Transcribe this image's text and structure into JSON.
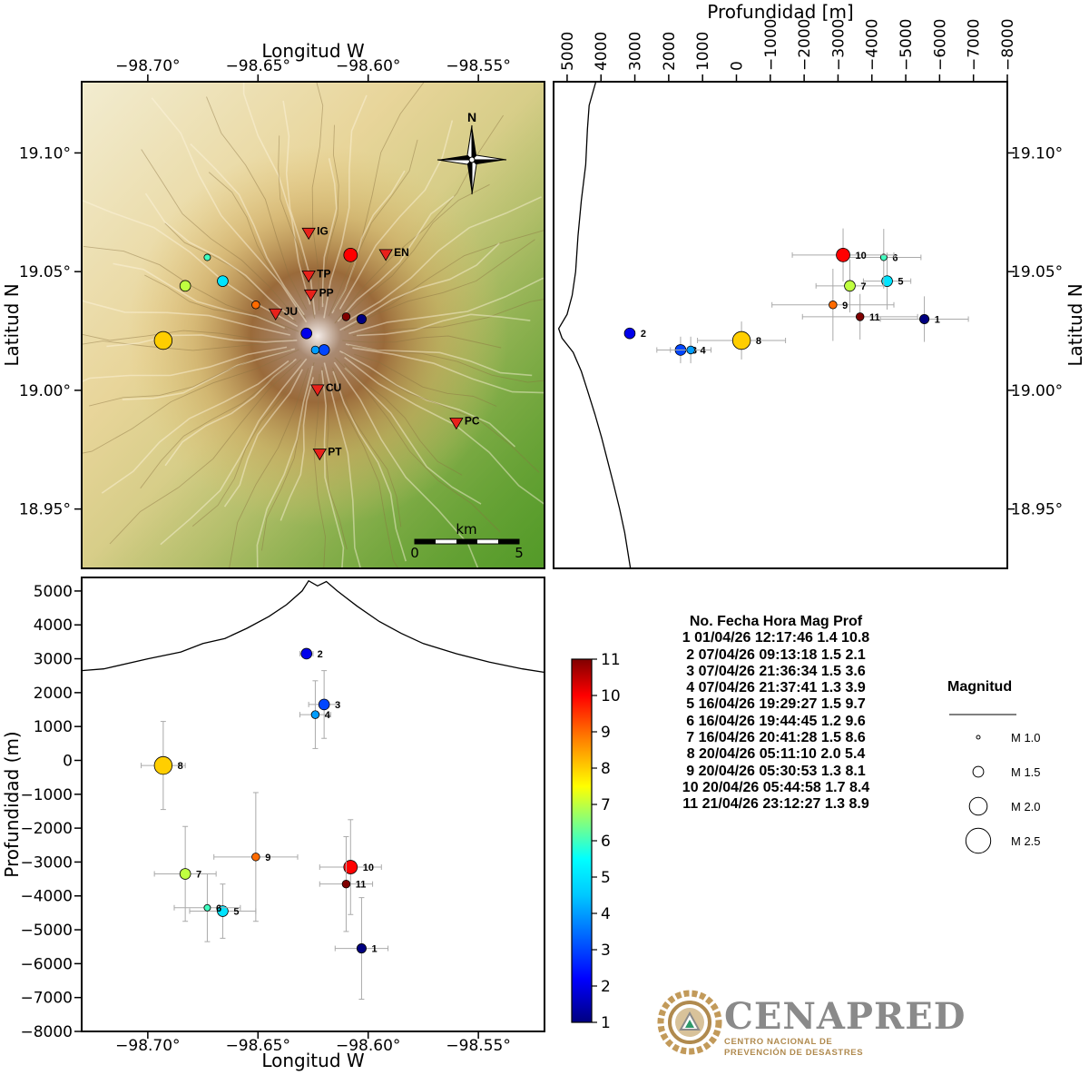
{
  "labels": {
    "map_top_xlabel": "Longitud W",
    "map_left_ylabel": "Latitud N",
    "depth_top_xlabel": "Profundidad [m]",
    "depth_right_ylabel": "Latitud N",
    "cross_left_ylabel": "Profundidad (m)",
    "cross_bottom_xlabel": "Longitud W",
    "north_label": "N",
    "scale_unit": "km",
    "scale_start": "0",
    "scale_end": "5"
  },
  "ticks": {
    "lon": [
      "−98.70°",
      "−98.65°",
      "−98.60°",
      "−98.55°"
    ],
    "lat": [
      "19.10°",
      "19.05°",
      "19.00°",
      "18.95°"
    ],
    "depth_top": [
      "5000",
      "4000",
      "3000",
      "2000",
      "1000",
      "0",
      "−1000",
      "−2000",
      "−3000",
      "−4000",
      "−5000",
      "−6000",
      "−7000",
      "−8000"
    ],
    "cross_y": [
      "5000",
      "4000",
      "3000",
      "2000",
      "1000",
      "0",
      "−1000",
      "−2000",
      "−3000",
      "−4000",
      "−5000",
      "−6000",
      "−7000",
      "−8000"
    ],
    "colorbar": [
      "1",
      "2",
      "3",
      "4",
      "5",
      "6",
      "7",
      "8",
      "9",
      "10",
      "11"
    ]
  },
  "stations": [
    {
      "code": "IG",
      "lon": -98.627,
      "lat": 19.066
    },
    {
      "code": "EN",
      "lon": -98.592,
      "lat": 19.057
    },
    {
      "code": "TP",
      "lon": -98.627,
      "lat": 19.048
    },
    {
      "code": "PP",
      "lon": -98.626,
      "lat": 19.04
    },
    {
      "code": "JU",
      "lon": -98.642,
      "lat": 19.032
    },
    {
      "code": "CU",
      "lon": -98.623,
      "lat": 19.0
    },
    {
      "code": "PC",
      "lon": -98.56,
      "lat": 18.986
    },
    {
      "code": "PT",
      "lon": -98.622,
      "lat": 18.973
    }
  ],
  "table": {
    "header": "No. Fecha Hora Mag Prof",
    "rows": [
      "1 01/04/26 12:17:46 1.4 10.8",
      "2 07/04/26 09:13:18 1.5 2.1",
      "3 07/04/26 21:36:34 1.5 3.6",
      "4 07/04/26 21:37:41 1.3 3.9",
      "5 16/04/26 19:29:27 1.5 9.7",
      "6 16/04/26 19:44:45 1.2 9.6",
      "7 16/04/26 20:41:28 1.5 8.6",
      "8 20/04/26 05:11:10 2.0 5.4",
      "9 20/04/26 05:30:53 1.3 8.1",
      "10 20/04/26 05:44:58 1.7 8.4",
      "11 21/04/26 23:12:27 1.3 8.9"
    ]
  },
  "legend": {
    "title": "Magnitud",
    "items": [
      {
        "label": "M 1.0",
        "mag": 1.0
      },
      {
        "label": "M 1.5",
        "mag": 1.5
      },
      {
        "label": "M 2.0",
        "mag": 2.0
      },
      {
        "label": "M 2.5",
        "mag": 2.5
      }
    ]
  },
  "logo": {
    "name": "CENAPRED",
    "sub1": "CENTRO NACIONAL DE",
    "sub2": "PREVENCIÓN DE DESASTRES"
  },
  "colors": {
    "station": "#e8221b",
    "error_bar": "#aaaaaa",
    "colormap": [
      "#000080",
      "#0000ff",
      "#0080ff",
      "#00ffff",
      "#80ff80",
      "#ffff00",
      "#ff8000",
      "#ff0000",
      "#800000"
    ],
    "logo_gray": "#8a8a8a",
    "logo_gold": "#b08a4e"
  },
  "chart_data": {
    "type": "scatter",
    "color_scale": {
      "variable": "event number",
      "range": [
        1,
        11
      ]
    },
    "map_extent": {
      "lon": [
        -98.73,
        -98.52
      ],
      "lat": [
        18.925,
        19.13
      ]
    },
    "depth_range": [
      -8000,
      5000
    ],
    "events": [
      {
        "id": 1,
        "lon": -98.603,
        "lat": 19.03,
        "depth": -5550,
        "mag": 1.4,
        "elon": 0.012,
        "edepth": 1300,
        "ecross_depth": 1500
      },
      {
        "id": 2,
        "lon": -98.628,
        "lat": 19.024,
        "depth": 3150,
        "mag": 1.5,
        "elon": 0.003,
        "edepth": 150,
        "ecross_depth": 130
      },
      {
        "id": 3,
        "lon": -98.62,
        "lat": 19.017,
        "depth": 1650,
        "mag": 1.5,
        "elon": 0.007,
        "edepth": 700,
        "ecross_depth": 1000
      },
      {
        "id": 4,
        "lon": -98.624,
        "lat": 19.017,
        "depth": 1350,
        "mag": 1.3,
        "elon": 0.007,
        "edepth": 600,
        "ecross_depth": 1000
      },
      {
        "id": 5,
        "lon": -98.666,
        "lat": 19.046,
        "depth": -4450,
        "mag": 1.5,
        "elon": 0.015,
        "edepth": 700,
        "ecross_depth": 800
      },
      {
        "id": 6,
        "lon": -98.673,
        "lat": 19.056,
        "depth": -4350,
        "mag": 1.2,
        "elon": 0.015,
        "edepth": 1100,
        "ecross_depth": 1000
      },
      {
        "id": 7,
        "lon": -98.683,
        "lat": 19.044,
        "depth": -3350,
        "mag": 1.5,
        "elon": 0.014,
        "edepth": 1000,
        "ecross_depth": 1400
      },
      {
        "id": 8,
        "lon": -98.693,
        "lat": 19.021,
        "depth": -150,
        "mag": 2.0,
        "elon": 0.01,
        "edepth": 1300,
        "ecross_depth": 1300
      },
      {
        "id": 9,
        "lon": -98.651,
        "lat": 19.036,
        "depth": -2850,
        "mag": 1.3,
        "elon": 0.019,
        "edepth": 1800,
        "ecross_depth": 1900
      },
      {
        "id": 10,
        "lon": -98.608,
        "lat": 19.057,
        "depth": -3150,
        "mag": 1.7,
        "elon": 0.014,
        "edepth": 1500,
        "ecross_depth": 1400
      },
      {
        "id": 11,
        "lon": -98.61,
        "lat": 19.031,
        "depth": -3650,
        "mag": 1.3,
        "elon": 0.012,
        "edepth": 1700,
        "ecross_depth": 1400
      }
    ],
    "surface_profile_ew": [
      [
        -98.73,
        2650
      ],
      [
        -98.72,
        2700
      ],
      [
        -98.7,
        3000
      ],
      [
        -98.685,
        3200
      ],
      [
        -98.675,
        3450
      ],
      [
        -98.665,
        3600
      ],
      [
        -98.655,
        3900
      ],
      [
        -98.645,
        4250
      ],
      [
        -98.637,
        4600
      ],
      [
        -98.63,
        5000
      ],
      [
        -98.627,
        5300
      ],
      [
        -98.623,
        5150
      ],
      [
        -98.619,
        5280
      ],
      [
        -98.614,
        5000
      ],
      [
        -98.605,
        4550
      ],
      [
        -98.595,
        4100
      ],
      [
        -98.585,
        3750
      ],
      [
        -98.575,
        3450
      ],
      [
        -98.56,
        3150
      ],
      [
        -98.545,
        2900
      ],
      [
        -98.53,
        2700
      ],
      [
        -98.52,
        2600
      ]
    ],
    "surface_profile_ns": [
      [
        19.13,
        4150
      ],
      [
        19.12,
        4350
      ],
      [
        19.11,
        4400
      ],
      [
        19.095,
        4450
      ],
      [
        19.08,
        4580
      ],
      [
        19.065,
        4680
      ],
      [
        19.05,
        4750
      ],
      [
        19.04,
        4850
      ],
      [
        19.032,
        5000
      ],
      [
        19.026,
        5250
      ],
      [
        19.022,
        5150
      ],
      [
        19.016,
        4820
      ],
      [
        19.008,
        4580
      ],
      [
        19.0,
        4400
      ],
      [
        18.99,
        4180
      ],
      [
        18.98,
        3980
      ],
      [
        18.97,
        3800
      ],
      [
        18.96,
        3620
      ],
      [
        18.95,
        3450
      ],
      [
        18.94,
        3300
      ],
      [
        18.925,
        3130
      ]
    ]
  }
}
